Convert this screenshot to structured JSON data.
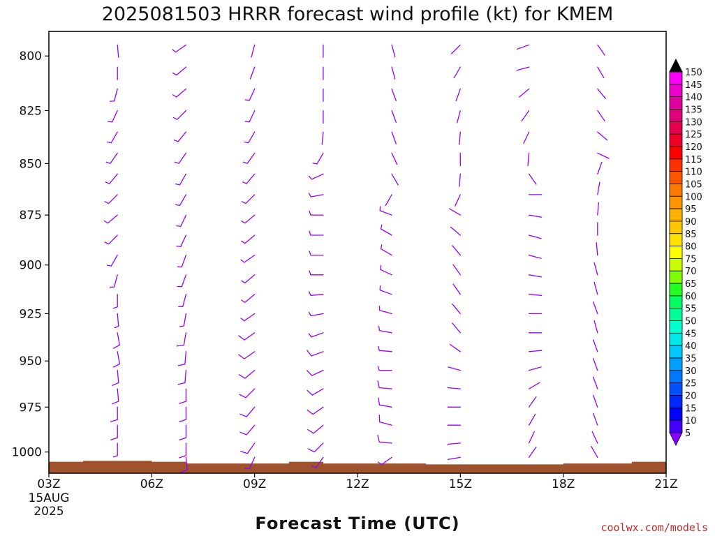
{
  "title": "2025081503 HRRR forecast wind profile (kt) for KMEM",
  "credit": "coolwx.com/models",
  "chart_data": {
    "type": "wind-barb-profile",
    "xlabel": "Forecast Time (UTC)",
    "x_ticks": [
      {
        "hour": 3,
        "label": "03Z",
        "sub1": "15AUG",
        "sub2": "2025"
      },
      {
        "hour": 6,
        "label": "06Z"
      },
      {
        "hour": 9,
        "label": "09Z"
      },
      {
        "hour": 12,
        "label": "12Z"
      },
      {
        "hour": 15,
        "label": "15Z"
      },
      {
        "hour": 18,
        "label": "18Z"
      },
      {
        "hour": 21,
        "label": "21Z"
      }
    ],
    "xlim": [
      3,
      21
    ],
    "y_ticks": [
      800,
      825,
      850,
      875,
      900,
      925,
      950,
      975,
      1000
    ],
    "ylim_hpa": [
      1012,
      789
    ],
    "surface_pressure": [
      {
        "hour": 3,
        "p": 1005.5
      },
      {
        "hour": 4,
        "p": 1005.0
      },
      {
        "hour": 5,
        "p": 1005.0
      },
      {
        "hour": 6,
        "p": 1005.5
      },
      {
        "hour": 7,
        "p": 1006.5
      },
      {
        "hour": 8,
        "p": 1006.5
      },
      {
        "hour": 9,
        "p": 1006.5
      },
      {
        "hour": 10,
        "p": 1005.5
      },
      {
        "hour": 11,
        "p": 1006.5
      },
      {
        "hour": 12,
        "p": 1006.5
      },
      {
        "hour": 13,
        "p": 1006.5
      },
      {
        "hour": 14,
        "p": 1007.0
      },
      {
        "hour": 15,
        "p": 1007.0
      },
      {
        "hour": 16,
        "p": 1007.0
      },
      {
        "hour": 17,
        "p": 1007.0
      },
      {
        "hour": 18,
        "p": 1006.5
      },
      {
        "hour": 19,
        "p": 1006.5
      },
      {
        "hour": 20,
        "p": 1005.5
      }
    ],
    "profiles": [
      {
        "hour": 5,
        "from": [
          [
            795,
            175,
            3
          ],
          [
            805,
            180,
            3
          ],
          [
            815,
            195,
            5
          ],
          [
            825,
            205,
            5
          ],
          [
            835,
            210,
            5
          ],
          [
            845,
            215,
            5
          ],
          [
            855,
            220,
            5
          ],
          [
            865,
            225,
            5
          ],
          [
            875,
            230,
            5
          ],
          [
            885,
            225,
            5
          ],
          [
            895,
            210,
            5
          ],
          [
            905,
            195,
            5
          ],
          [
            915,
            180,
            5
          ],
          [
            925,
            175,
            5
          ],
          [
            935,
            170,
            10
          ],
          [
            945,
            170,
            10
          ],
          [
            955,
            175,
            10
          ],
          [
            965,
            175,
            10
          ],
          [
            975,
            180,
            10
          ],
          [
            985,
            180,
            10
          ],
          [
            995,
            180,
            5
          ]
        ]
      },
      {
        "hour": 7,
        "from": [
          [
            795,
            235,
            5
          ],
          [
            805,
            230,
            5
          ],
          [
            815,
            230,
            5
          ],
          [
            825,
            225,
            5
          ],
          [
            835,
            220,
            5
          ],
          [
            845,
            215,
            5
          ],
          [
            855,
            210,
            5
          ],
          [
            865,
            210,
            5
          ],
          [
            875,
            205,
            5
          ],
          [
            885,
            205,
            5
          ],
          [
            895,
            200,
            5
          ],
          [
            905,
            200,
            5
          ],
          [
            915,
            195,
            5
          ],
          [
            925,
            190,
            5
          ],
          [
            935,
            190,
            10
          ],
          [
            945,
            185,
            10
          ],
          [
            955,
            185,
            10
          ],
          [
            965,
            180,
            10
          ],
          [
            975,
            180,
            10
          ],
          [
            985,
            180,
            10
          ],
          [
            995,
            180,
            10
          ],
          [
            1003,
            175,
            10
          ]
        ]
      },
      {
        "hour": 9,
        "from": [
          [
            795,
            195,
            3
          ],
          [
            805,
            200,
            3
          ],
          [
            815,
            205,
            5
          ],
          [
            825,
            205,
            5
          ],
          [
            835,
            210,
            5
          ],
          [
            845,
            215,
            5
          ],
          [
            855,
            220,
            5
          ],
          [
            865,
            225,
            5
          ],
          [
            875,
            230,
            5
          ],
          [
            885,
            230,
            5
          ],
          [
            895,
            235,
            5
          ],
          [
            905,
            230,
            5
          ],
          [
            915,
            230,
            5
          ],
          [
            925,
            235,
            5
          ],
          [
            935,
            235,
            10
          ],
          [
            945,
            235,
            10
          ],
          [
            955,
            230,
            10
          ],
          [
            965,
            225,
            10
          ],
          [
            975,
            220,
            10
          ],
          [
            985,
            220,
            10
          ],
          [
            995,
            215,
            10
          ],
          [
            1003,
            205,
            5
          ]
        ]
      },
      {
        "hour": 11,
        "from": [
          [
            795,
            180,
            3
          ],
          [
            805,
            180,
            3
          ],
          [
            815,
            180,
            3
          ],
          [
            825,
            180,
            3
          ],
          [
            835,
            185,
            3
          ],
          [
            845,
            210,
            5
          ],
          [
            855,
            245,
            5
          ],
          [
            865,
            260,
            5
          ],
          [
            875,
            270,
            5
          ],
          [
            885,
            270,
            5
          ],
          [
            895,
            270,
            5
          ],
          [
            905,
            270,
            5
          ],
          [
            915,
            265,
            5
          ],
          [
            925,
            260,
            5
          ],
          [
            935,
            250,
            5
          ],
          [
            945,
            250,
            10
          ],
          [
            955,
            245,
            10
          ],
          [
            965,
            240,
            10
          ],
          [
            975,
            235,
            10
          ],
          [
            985,
            230,
            10
          ],
          [
            995,
            225,
            10
          ],
          [
            1003,
            215,
            5
          ]
        ]
      },
      {
        "hour": 13,
        "from": [
          [
            795,
            165,
            3
          ],
          [
            805,
            165,
            3
          ],
          [
            815,
            160,
            3
          ],
          [
            825,
            160,
            3
          ],
          [
            835,
            160,
            3
          ],
          [
            845,
            155,
            3
          ],
          [
            855,
            150,
            3
          ],
          [
            865,
            210,
            3
          ],
          [
            875,
            290,
            5
          ],
          [
            885,
            300,
            5
          ],
          [
            895,
            300,
            5
          ],
          [
            905,
            295,
            5
          ],
          [
            915,
            290,
            5
          ],
          [
            925,
            285,
            5
          ],
          [
            935,
            280,
            5
          ],
          [
            945,
            275,
            5
          ],
          [
            955,
            270,
            5
          ],
          [
            965,
            275,
            10
          ],
          [
            975,
            280,
            10
          ],
          [
            985,
            285,
            10
          ],
          [
            995,
            275,
            10
          ],
          [
            1003,
            235,
            5
          ]
        ]
      },
      {
        "hour": 15,
        "from": [
          [
            795,
            225,
            3
          ],
          [
            805,
            210,
            3
          ],
          [
            815,
            200,
            3
          ],
          [
            825,
            195,
            3
          ],
          [
            835,
            185,
            3
          ],
          [
            845,
            180,
            3
          ],
          [
            855,
            185,
            3
          ],
          [
            865,
            205,
            3
          ],
          [
            875,
            300,
            3
          ],
          [
            885,
            310,
            3
          ],
          [
            895,
            320,
            3
          ],
          [
            905,
            325,
            3
          ],
          [
            915,
            325,
            3
          ],
          [
            925,
            320,
            3
          ],
          [
            935,
            320,
            3
          ],
          [
            945,
            305,
            3
          ],
          [
            955,
            285,
            3
          ],
          [
            965,
            275,
            3
          ],
          [
            975,
            270,
            3
          ],
          [
            985,
            270,
            3
          ],
          [
            995,
            265,
            3
          ],
          [
            1003,
            260,
            3
          ]
        ]
      },
      {
        "hour": 17,
        "from": [
          [
            795,
            250,
            3
          ],
          [
            805,
            255,
            3
          ],
          [
            815,
            230,
            3
          ],
          [
            825,
            215,
            3
          ],
          [
            835,
            205,
            3
          ],
          [
            845,
            185,
            3
          ],
          [
            855,
            145,
            3
          ],
          [
            865,
            90,
            3
          ],
          [
            875,
            100,
            3
          ],
          [
            885,
            105,
            3
          ],
          [
            895,
            105,
            3
          ],
          [
            905,
            100,
            3
          ],
          [
            915,
            95,
            3
          ],
          [
            925,
            90,
            3
          ],
          [
            935,
            90,
            3
          ],
          [
            945,
            85,
            3
          ],
          [
            955,
            75,
            3
          ],
          [
            965,
            60,
            3
          ],
          [
            975,
            35,
            3
          ],
          [
            985,
            30,
            3
          ],
          [
            995,
            25,
            3
          ],
          [
            1003,
            35,
            3
          ]
        ]
      },
      {
        "hour": 19,
        "from": [
          [
            795,
            145,
            3
          ],
          [
            805,
            150,
            3
          ],
          [
            815,
            140,
            3
          ],
          [
            825,
            145,
            3
          ],
          [
            835,
            130,
            3
          ],
          [
            845,
            115,
            3
          ],
          [
            855,
            20,
            3
          ],
          [
            865,
            10,
            3
          ],
          [
            875,
            5,
            3
          ],
          [
            885,
            0,
            3
          ],
          [
            895,
            355,
            3
          ],
          [
            905,
            345,
            3
          ],
          [
            915,
            345,
            3
          ],
          [
            925,
            340,
            3
          ],
          [
            935,
            345,
            3
          ],
          [
            945,
            340,
            3
          ],
          [
            955,
            340,
            3
          ],
          [
            965,
            340,
            3
          ],
          [
            975,
            340,
            3
          ],
          [
            985,
            340,
            3
          ],
          [
            995,
            335,
            3
          ],
          [
            1003,
            330,
            3
          ]
        ]
      },
      {
        "hour": 21,
        "from": [
          [
            795,
            150,
            3
          ],
          [
            810,
            75,
            3
          ],
          [
            820,
            0,
            3
          ]
        ]
      }
    ],
    "legend_max": 150,
    "colorbar": [
      {
        "value": 150,
        "label": "150",
        "color": "#ff00ff"
      },
      {
        "value": 145,
        "label": "145",
        "color": "#ee00cc"
      },
      {
        "value": 140,
        "label": "140",
        "color": "#e0009f"
      },
      {
        "value": 135,
        "label": "135",
        "color": "#e0007a"
      },
      {
        "value": 130,
        "label": "130",
        "color": "#e8004f"
      },
      {
        "value": 125,
        "label": "125",
        "color": "#f00028"
      },
      {
        "value": 120,
        "label": "120",
        "color": "#ff0000"
      },
      {
        "value": 115,
        "label": "115",
        "color": "#ff3000"
      },
      {
        "value": 110,
        "label": "110",
        "color": "#ff5500"
      },
      {
        "value": 105,
        "label": "105",
        "color": "#ff7800"
      },
      {
        "value": 100,
        "label": "100",
        "color": "#ff9500"
      },
      {
        "value": 95,
        "label": "95",
        "color": "#ffb000"
      },
      {
        "value": 90,
        "label": "90",
        "color": "#ffc800"
      },
      {
        "value": 85,
        "label": "85",
        "color": "#ffe000"
      },
      {
        "value": 80,
        "label": "80",
        "color": "#ffff00"
      },
      {
        "value": 75,
        "label": "75",
        "color": "#c8ff00"
      },
      {
        "value": 70,
        "label": "70",
        "color": "#80ff00"
      },
      {
        "value": 65,
        "label": "65",
        "color": "#20ff20"
      },
      {
        "value": 60,
        "label": "60",
        "color": "#00ff60"
      },
      {
        "value": 55,
        "label": "55",
        "color": "#00ff99"
      },
      {
        "value": 50,
        "label": "50",
        "color": "#00ffcc"
      },
      {
        "value": 45,
        "label": "45",
        "color": "#00e8e8"
      },
      {
        "value": 40,
        "label": "40",
        "color": "#00c8ff"
      },
      {
        "value": 35,
        "label": "35",
        "color": "#00a0ff"
      },
      {
        "value": 30,
        "label": "30",
        "color": "#0078ff"
      },
      {
        "value": 25,
        "label": "25",
        "color": "#0050ff"
      },
      {
        "value": 20,
        "label": "20",
        "color": "#0028ff"
      },
      {
        "value": 15,
        "label": "15",
        "color": "#0000ff"
      },
      {
        "value": 10,
        "label": "10",
        "color": "#4400ff"
      },
      {
        "value": 5,
        "label": "5",
        "color": "#8800ff"
      }
    ],
    "barb_color": "#9400ff",
    "terrain_color": "#a0522d"
  }
}
